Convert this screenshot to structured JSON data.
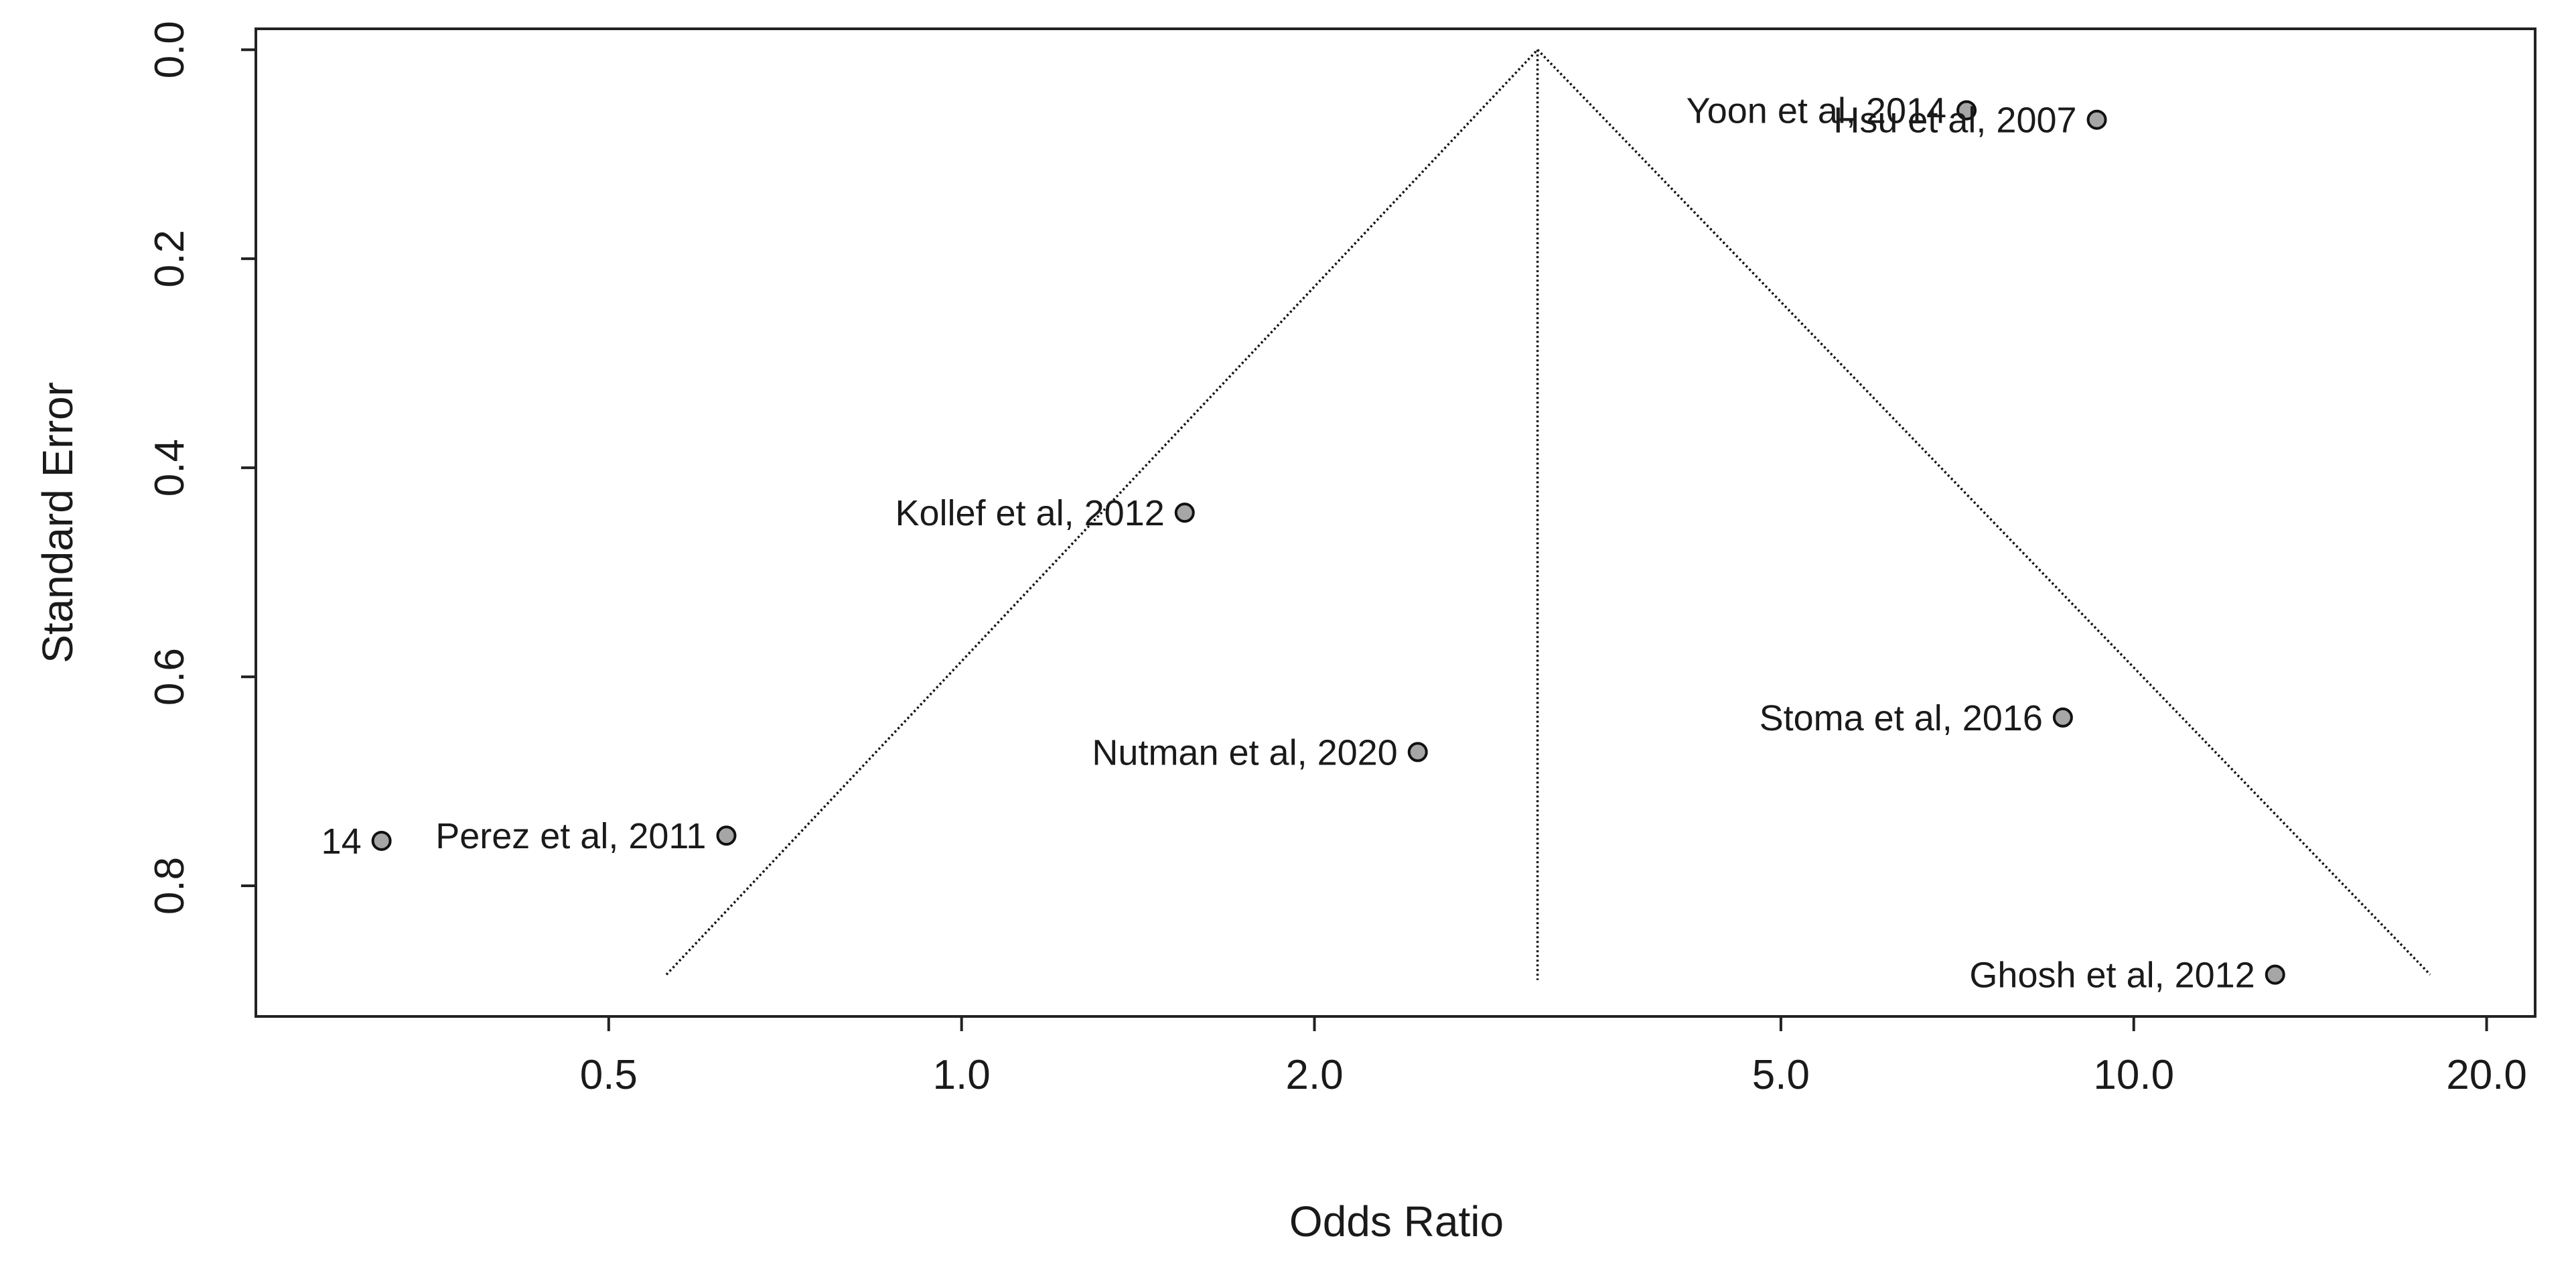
{
  "chart_data": {
    "type": "scatter",
    "subtype": "funnel plot",
    "xlabel": "Odds Ratio",
    "ylabel": "Standard Error",
    "xscale": "log",
    "xlim": [
      0.25,
      22
    ],
    "ylim": [
      0.925,
      -0.02
    ],
    "y_inverted": true,
    "xticks": [
      0.5,
      1.0,
      2.0,
      5.0,
      10.0,
      20.0
    ],
    "xtick_labels": [
      "0.5",
      "1.0",
      "2.0",
      "5.0",
      "10.0",
      "20.0"
    ],
    "yticks": [
      0.0,
      0.2,
      0.4,
      0.6,
      0.8
    ],
    "ytick_labels": [
      "0.0",
      "0.2",
      "0.4",
      "0.6",
      "0.8"
    ],
    "center_or": 3.1,
    "funnel_se_max": 0.885,
    "funnel_lower_or": 0.56,
    "funnel_upper_or": 17.9,
    "points": [
      {
        "label": "Yoon et al, 2014",
        "or": 7.2,
        "se": 0.058
      },
      {
        "label": "Hsu et al, 2007",
        "or": 9.3,
        "se": 0.067
      },
      {
        "label": "Kollef et al, 2012",
        "or": 1.55,
        "se": 0.443
      },
      {
        "label": "Stoma et al, 2016",
        "or": 8.7,
        "se": 0.639
      },
      {
        "label": "Nutman et al, 2020",
        "or": 2.45,
        "se": 0.672
      },
      {
        "label": "Perez et al, 2011",
        "or": 0.63,
        "se": 0.752
      },
      {
        "label": "14",
        "or": 0.32,
        "se": 0.757
      },
      {
        "label": "Ghosh et al, 2012",
        "or": 13.2,
        "se": 0.885
      }
    ]
  }
}
